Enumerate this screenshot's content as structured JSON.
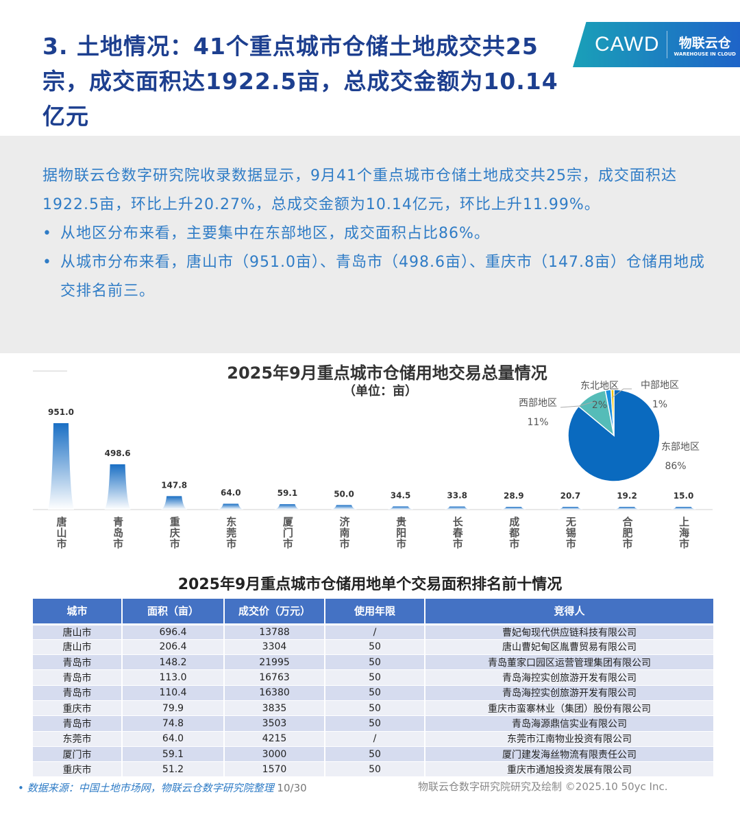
{
  "header": {
    "title": "3. 土地情况：41个重点城市仓储土地成交共25宗，成交面积达1922.5亩，总成交金额为10.14亿元",
    "logo": {
      "left": "CAWD",
      "right": "物联云仓",
      "right_sub": "WAREHOUSE IN CLOUD"
    }
  },
  "summary": {
    "paragraph": "据物联云仓数字研究院收录数据显示，9月41个重点城市仓储土地成交共25宗，成交面积达1922.5亩，环比上升20.27%，总成交金额为10.14亿元，环比上升11.99%。",
    "bullets": [
      "从地区分布来看，主要集中在东部地区，成交面积占比86%。",
      "从城市分布来看，唐山市（951.0亩）、青岛市（498.6亩）、重庆市（147.8亩）仓储用地成交排名前三。"
    ]
  },
  "chart_data": [
    {
      "type": "bar",
      "title": "2025年9月重点城市仓储用地交易总量情况",
      "subtitle": "（单位：亩）",
      "categories": [
        "唐山市",
        "青岛市",
        "重庆市",
        "东莞市",
        "厦门市",
        "济南市",
        "贵阳市",
        "长春市",
        "成都市",
        "无锡市",
        "合肥市",
        "上海市"
      ],
      "values": [
        951.0,
        498.6,
        147.8,
        64.0,
        59.1,
        50.0,
        34.5,
        33.8,
        28.9,
        20.7,
        19.2,
        15.0
      ],
      "value_labels": [
        "951.0",
        "498.6",
        "147.8",
        "64.0",
        "59.1",
        "50.0",
        "34.5",
        "33.8",
        "28.9",
        "20.7",
        "19.2",
        "15.0"
      ],
      "color": "#1a6fc4"
    },
    {
      "type": "pie",
      "slices": [
        {
          "name": "东部地区",
          "value": 86,
          "label": "86%",
          "color": "#0a6abf"
        },
        {
          "name": "西部地区",
          "value": 11,
          "label": "11%",
          "color": "#55bcb8"
        },
        {
          "name": "东北地区",
          "value": 2,
          "label": "2%",
          "color": "#1a8fe0"
        },
        {
          "name": "中部地区",
          "value": 1,
          "label": "1%",
          "color": "#f2c200"
        }
      ]
    }
  ],
  "table": {
    "title": "2025年9月重点城市仓储用地单个交易面积排名前十情况",
    "headers": [
      "城市",
      "面积（亩）",
      "成交价（万元）",
      "使用年限",
      "竞得人"
    ],
    "rows": [
      [
        "唐山市",
        "696.4",
        "13788",
        "/",
        "曹妃甸现代供应链科技有限公司"
      ],
      [
        "唐山市",
        "206.4",
        "3304",
        "50",
        "唐山曹妃甸区胤曹贸易有限公司"
      ],
      [
        "青岛市",
        "148.2",
        "21995",
        "50",
        "青岛董家口园区运营管理集团有限公司"
      ],
      [
        "青岛市",
        "113.0",
        "16763",
        "50",
        "青岛海控实创旅游开发有限公司"
      ],
      [
        "青岛市",
        "110.4",
        "16380",
        "50",
        "青岛海控实创旅游开发有限公司"
      ],
      [
        "重庆市",
        "79.9",
        "3835",
        "50",
        "重庆市蛮寨林业（集团）股份有限公司"
      ],
      [
        "青岛市",
        "74.8",
        "3503",
        "50",
        "青岛海源鼎信实业有限公司"
      ],
      [
        "东莞市",
        "64.0",
        "4215",
        "/",
        "东莞市江南物业投资有限公司"
      ],
      [
        "厦门市",
        "59.1",
        "3000",
        "50",
        "厦门建发海丝物流有限责任公司"
      ],
      [
        "重庆市",
        "51.2",
        "1570",
        "50",
        "重庆市通旭投资发展有限公司"
      ]
    ]
  },
  "footer": {
    "source": "数据来源：中国土地市场网，物联云仓数字研究院整理",
    "page": "10/30",
    "credit": "物联云仓数字研究院研究及绘制 ©2025.10 50yc Inc."
  }
}
